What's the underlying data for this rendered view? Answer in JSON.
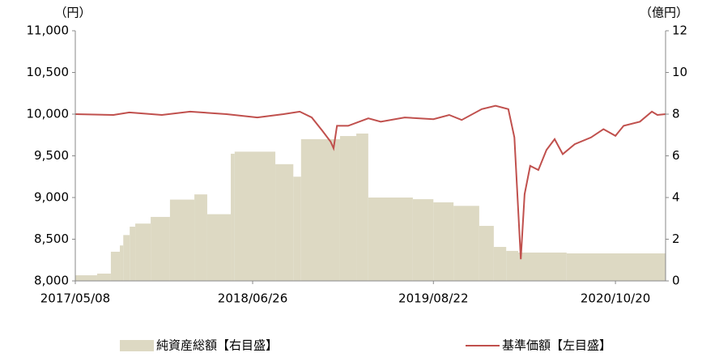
{
  "chart_data": {
    "type": "combo",
    "y_unit_label": "（円）",
    "y2_unit_label": "（億円）",
    "xlim": [
      "2017/05/08",
      "2021/02/14"
    ],
    "xticks": [
      "2017/05/08",
      "2018/06/26",
      "2019/08/22",
      "2020/10/20"
    ],
    "ylim": [
      8000,
      11000
    ],
    "yticks": [
      {
        "value": 8000,
        "label": "8,000"
      },
      {
        "value": 8500,
        "label": "8,500"
      },
      {
        "value": 9000,
        "label": "9,000"
      },
      {
        "value": 9500,
        "label": "9,500"
      },
      {
        "value": 10000,
        "label": "10,000"
      },
      {
        "value": 10500,
        "label": "10,500"
      },
      {
        "value": 11000,
        "label": "11,000"
      }
    ],
    "y2lim": [
      0,
      12
    ],
    "y2ticks": [
      0,
      2,
      4,
      6,
      8,
      10,
      12
    ],
    "grid": false,
    "legend": "bottom",
    "series": [
      {
        "name": "純資産総額【右目盛】",
        "type": "area",
        "step": true,
        "axis": "y2",
        "color": "#ddd9c3",
        "x": [
          "2017/05/08",
          "2017/06/28",
          "2017/07/30",
          "2017/08/20",
          "2017/08/28",
          "2017/09/12",
          "2017/09/25",
          "2017/10/31",
          "2017/12/15",
          "2018/02/10",
          "2018/03/12",
          "2018/05/06",
          "2018/05/15",
          "2018/08/18",
          "2018/09/29",
          "2018/10/17",
          "2019/01/16",
          "2019/02/23",
          "2019/03/23",
          "2019/07/05",
          "2019/08/22",
          "2019/10/08",
          "2019/12/07",
          "2020/01/10",
          "2020/02/08",
          "2020/03/07",
          "2020/06/28",
          "2021/02/14"
        ],
        "values": [
          0.27,
          0.35,
          1.4,
          1.7,
          2.2,
          2.6,
          2.75,
          3.07,
          3.9,
          4.15,
          3.2,
          6.1,
          6.2,
          5.6,
          5.0,
          6.8,
          6.95,
          7.07,
          4.0,
          3.92,
          3.77,
          3.6,
          2.64,
          1.63,
          1.44,
          1.36,
          1.32,
          1.32
        ]
      },
      {
        "name": "基準価額【左目盛】",
        "type": "line",
        "color": "#c0504d",
        "x": [
          "2017/05/08",
          "2017/08/05",
          "2017/09/11",
          "2017/11/26",
          "2018/01/31",
          "2018/04/26",
          "2018/07/07",
          "2018/09/06",
          "2018/10/14",
          "2018/11/11",
          "2018/12/06",
          "2018/12/25",
          "2019/01/01",
          "2019/01/09",
          "2019/02/04",
          "2019/03/23",
          "2019/04/21",
          "2019/06/16",
          "2019/08/22",
          "2019/09/28",
          "2019/10/27",
          "2019/12/13",
          "2020/01/14",
          "2020/02/13",
          "2020/02/27",
          "2020/03/13",
          "2020/03/22",
          "2020/04/04",
          "2020/04/23",
          "2020/05/12",
          "2020/05/31",
          "2020/06/19",
          "2020/07/17",
          "2020/08/24",
          "2020/09/22",
          "2020/10/20",
          "2020/11/08",
          "2020/12/16",
          "2021/01/13",
          "2021/01/26",
          "2021/02/14"
        ],
        "values": [
          10000,
          9990,
          10020,
          9990,
          10030,
          10000,
          9960,
          10000,
          10030,
          9960,
          9800,
          9670,
          9590,
          9860,
          9860,
          9950,
          9910,
          9960,
          9940,
          9990,
          9930,
          10060,
          10100,
          10060,
          9720,
          8260,
          9040,
          9380,
          9330,
          9570,
          9700,
          9520,
          9640,
          9720,
          9820,
          9740,
          9860,
          9910,
          10030,
          9990,
          10000
        ]
      }
    ]
  }
}
